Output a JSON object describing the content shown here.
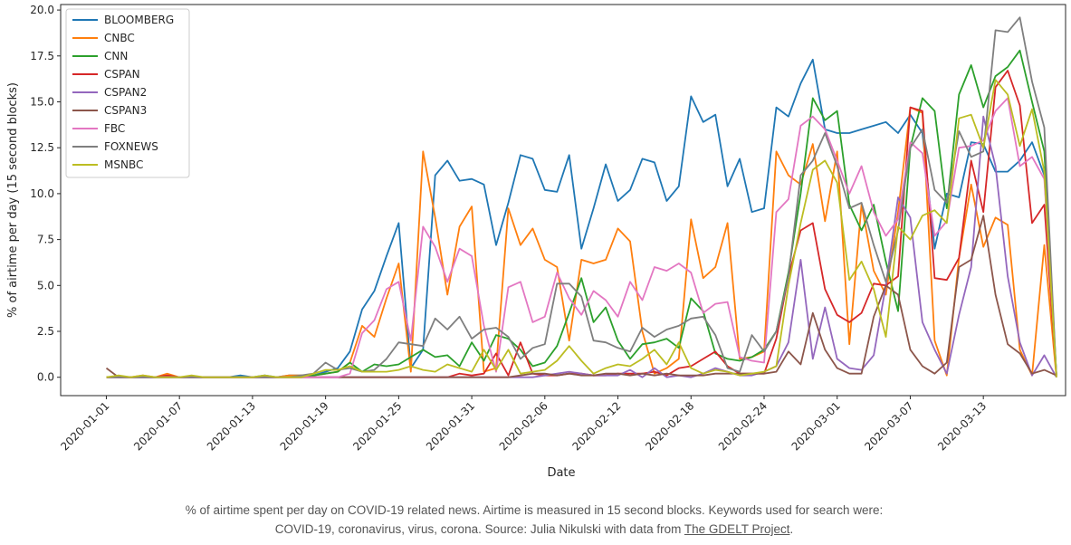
{
  "chart_data": {
    "type": "line",
    "xlabel": "Date",
    "ylabel": "% of airtime per day (15 second blocks)",
    "ylim": [
      -1.0,
      20.3
    ],
    "y_ticks": [
      "0.0",
      "2.5",
      "5.0",
      "7.5",
      "10.0",
      "12.5",
      "15.0",
      "17.5",
      "20.0"
    ],
    "x_tick_labels": [
      "2020-01-01",
      "2020-01-07",
      "2020-01-13",
      "2020-01-19",
      "2020-01-25",
      "2020-01-31",
      "2020-02-06",
      "2020-02-12",
      "2020-02-18",
      "2020-02-24",
      "2020-03-01",
      "2020-03-07",
      "2020-03-13"
    ],
    "start_date": "2020-01-01",
    "end_date": "2020-03-16",
    "grid": false,
    "legend_position": "top-left",
    "series": [
      {
        "name": "BLOOMBERG",
        "color": "#1f77b4",
        "values": [
          0,
          0,
          0,
          0,
          0,
          0,
          0,
          0,
          0,
          0,
          0,
          0.1,
          0,
          0.1,
          0,
          0.1,
          0.1,
          0.1,
          0.3,
          0.5,
          1.4,
          3.7,
          4.7,
          6.6,
          8.4,
          0.5,
          1.5,
          11.0,
          11.8,
          10.7,
          10.8,
          10.5,
          7.2,
          9.5,
          12.1,
          11.9,
          10.2,
          10.1,
          12.1,
          7.0,
          9.2,
          11.6,
          9.6,
          10.2,
          11.9,
          11.7,
          9.6,
          10.4,
          15.3,
          13.9,
          14.3,
          10.4,
          11.9,
          9.0,
          9.2,
          14.7,
          14.2,
          16.0,
          17.3,
          13.5,
          13.3,
          13.3,
          13.5,
          13.7,
          13.9,
          13.3,
          14.3,
          13.3,
          7.0,
          10.0,
          9.8,
          12.8,
          12.7,
          11.2,
          11.2,
          11.8,
          12.8,
          11.0,
          0.1
        ]
      },
      {
        "name": "CNBC",
        "color": "#ff7f0e",
        "values": [
          0,
          0,
          0,
          0.1,
          0,
          0.2,
          0,
          0,
          0,
          0,
          0,
          0,
          0,
          0,
          0,
          0.1,
          0.1,
          0.1,
          0.2,
          0.3,
          0.8,
          2.8,
          2.2,
          4.3,
          6.2,
          0.3,
          12.3,
          8.7,
          4.5,
          8.2,
          9.3,
          0.3,
          0.5,
          9.2,
          7.2,
          8.1,
          6.4,
          6.0,
          2.0,
          6.4,
          6.2,
          6.4,
          8.1,
          7.4,
          2.5,
          0.2,
          0.5,
          1.0,
          8.6,
          5.4,
          6.0,
          8.4,
          1.0,
          1.1,
          1.4,
          12.3,
          11.0,
          10.5,
          12.7,
          8.5,
          12.3,
          1.8,
          9.4,
          5.8,
          4.5,
          9.0,
          14.7,
          14.4,
          2.0,
          0.1,
          6.5,
          10.5,
          7.1,
          8.7,
          8.3,
          1.5,
          0.1,
          7.2,
          0
        ]
      },
      {
        "name": "CNN",
        "color": "#2ca02c",
        "values": [
          0,
          0,
          0,
          0,
          0,
          0,
          0,
          0,
          0,
          0,
          0,
          0,
          0,
          0,
          0,
          0,
          0,
          0.1,
          0.2,
          0.3,
          0.8,
          0.3,
          0.7,
          0.6,
          0.7,
          1.1,
          1.5,
          1.1,
          1.2,
          0.6,
          1.9,
          0.9,
          2.3,
          2.1,
          1.5,
          0.6,
          0.8,
          1.7,
          3.5,
          5.4,
          3.0,
          3.8,
          2.0,
          1.0,
          1.8,
          1.9,
          2.1,
          1.6,
          4.3,
          3.6,
          1.3,
          1.0,
          0.9,
          1.1,
          1.5,
          2.5,
          5.7,
          10.0,
          15.2,
          14.0,
          14.5,
          9.4,
          8.0,
          9.4,
          6.3,
          3.6,
          12.5,
          15.2,
          14.5,
          9.2,
          15.4,
          17.0,
          14.7,
          16.4,
          16.9,
          17.8,
          15.0,
          12.3,
          0.1
        ]
      },
      {
        "name": "CSPAN",
        "color": "#d62728",
        "values": [
          0,
          0,
          0,
          0,
          0,
          0.1,
          0,
          0,
          0,
          0,
          0,
          0,
          0,
          0,
          0,
          0,
          0,
          0,
          0,
          0,
          0,
          0,
          0,
          0,
          0,
          0,
          0,
          0,
          0,
          0.2,
          0.1,
          0.2,
          1.3,
          0.1,
          1.9,
          0.2,
          0.1,
          0.1,
          0.2,
          0.2,
          0.1,
          0.1,
          0.2,
          0.2,
          0.2,
          0.3,
          0.1,
          0.5,
          0.6,
          1.0,
          1.4,
          0.6,
          0.2,
          0.2,
          0.2,
          2.1,
          5.5,
          8.0,
          8.4,
          4.8,
          3.4,
          3.0,
          3.5,
          5.1,
          5.0,
          5.5,
          14.7,
          14.5,
          5.4,
          5.3,
          6.5,
          11.8,
          9.0,
          15.8,
          16.7,
          14.8,
          8.4,
          9.4,
          0.1
        ]
      },
      {
        "name": "CSPAN2",
        "color": "#9467bd",
        "values": [
          0,
          0,
          0,
          0,
          0,
          0,
          0,
          0,
          0,
          0,
          0,
          0,
          0,
          0,
          0,
          0,
          0,
          0,
          0,
          0,
          0,
          0,
          0,
          0,
          0,
          0,
          0,
          0,
          0,
          0,
          0,
          0,
          0,
          0,
          0,
          0,
          0.1,
          0.2,
          0.3,
          0.2,
          0.1,
          0.1,
          0.1,
          0.4,
          0,
          0.5,
          0,
          0.1,
          0,
          0.2,
          0.5,
          0.3,
          0.1,
          0.1,
          0.3,
          0.6,
          1.9,
          6.4,
          1.0,
          3.8,
          1.0,
          0.5,
          0.4,
          1.2,
          5.0,
          9.8,
          8.7,
          3.0,
          1.5,
          0.2,
          3.4,
          6.0,
          14.2,
          11.5,
          5.5,
          1.9,
          0.1,
          1.2,
          0
        ]
      },
      {
        "name": "CSPAN3",
        "color": "#8c564b",
        "values": [
          0.5,
          0,
          0,
          0,
          0,
          0,
          0,
          0,
          0,
          0,
          0,
          0,
          0,
          0,
          0,
          0,
          0,
          0,
          0,
          0,
          0,
          0,
          0,
          0,
          0,
          0,
          0,
          0,
          0,
          0,
          0,
          0,
          0,
          0,
          0.1,
          0.2,
          0.2,
          0.1,
          0.2,
          0.1,
          0.1,
          0.2,
          0.2,
          0.1,
          0.2,
          0.1,
          0.2,
          0.1,
          0.1,
          0.1,
          0.2,
          0.2,
          0.2,
          0.2,
          0.2,
          0.3,
          1.4,
          0.7,
          3.5,
          1.5,
          0.5,
          0.2,
          0.2,
          3.3,
          5.0,
          4.5,
          1.5,
          0.6,
          0.2,
          0.8,
          6.0,
          6.4,
          8.8,
          4.5,
          1.8,
          1.3,
          0.2,
          0.4,
          0.1
        ]
      },
      {
        "name": "FBC",
        "color": "#e377c2",
        "values": [
          0,
          0,
          0,
          0,
          0,
          0,
          0,
          0,
          0,
          0,
          0,
          0,
          0,
          0,
          0,
          0,
          0,
          0,
          0,
          0,
          0.2,
          2.4,
          3.1,
          4.8,
          5.2,
          2.0,
          8.2,
          7.1,
          5.2,
          7.0,
          6.6,
          2.8,
          0.3,
          4.9,
          5.2,
          3.0,
          3.3,
          5.7,
          4.3,
          3.4,
          4.7,
          4.2,
          3.3,
          5.2,
          4.2,
          6.0,
          5.8,
          6.2,
          5.7,
          3.5,
          4.0,
          4.1,
          1.1,
          0.9,
          0.8,
          9.0,
          9.7,
          13.7,
          14.2,
          13.5,
          11.8,
          10.0,
          11.5,
          9.0,
          7.7,
          8.6,
          12.8,
          12.2,
          7.7,
          8.5,
          12.5,
          12.6,
          12.9,
          14.5,
          15.2,
          11.5,
          12.0,
          10.8,
          0.1
        ]
      },
      {
        "name": "FOXNEWS",
        "color": "#7f7f7f",
        "values": [
          0,
          0,
          0,
          0,
          0,
          0,
          0,
          0,
          0,
          0,
          0,
          0,
          0,
          0,
          0,
          0,
          0.1,
          0.2,
          0.8,
          0.4,
          0.5,
          0.3,
          0.4,
          1.0,
          1.9,
          1.8,
          1.7,
          3.2,
          2.6,
          3.3,
          2.1,
          2.6,
          2.7,
          2.2,
          1.0,
          1.6,
          1.8,
          5.1,
          5.1,
          4.4,
          2.0,
          1.9,
          1.6,
          1.4,
          2.7,
          2.2,
          2.6,
          2.8,
          3.2,
          3.3,
          2.3,
          0.5,
          0.3,
          2.3,
          1.4,
          2.5,
          5.5,
          11.0,
          11.8,
          13.3,
          11.5,
          9.2,
          9.5,
          7.2,
          5.2,
          8.0,
          12.5,
          13.5,
          10.2,
          9.5,
          13.4,
          12.0,
          12.3,
          18.9,
          18.8,
          19.6,
          16.1,
          13.6,
          0
        ]
      },
      {
        "name": "MSNBC",
        "color": "#bcbd22",
        "values": [
          0,
          0.1,
          0,
          0.1,
          0,
          0,
          0,
          0.1,
          0,
          0,
          0,
          0,
          0,
          0.1,
          0,
          0,
          0,
          0.2,
          0.4,
          0.4,
          0.6,
          0.3,
          0.3,
          0.3,
          0.4,
          0.6,
          0.4,
          0.3,
          0.7,
          0.5,
          0.3,
          1.5,
          0.4,
          1.5,
          0.2,
          0.3,
          0.4,
          0.9,
          1.7,
          0.9,
          0.2,
          0.5,
          0.7,
          0.6,
          1.0,
          1.5,
          0.7,
          1.9,
          0.5,
          0.2,
          0.4,
          0.3,
          0.1,
          0.2,
          0.3,
          0.6,
          5.0,
          8.4,
          11.3,
          11.8,
          10.6,
          5.3,
          6.3,
          4.8,
          2.2,
          8.2,
          7.5,
          8.8,
          9.1,
          8.4,
          14.1,
          14.3,
          12.5,
          16.2,
          15.4,
          12.6,
          14.6,
          11.2,
          0
        ]
      }
    ]
  },
  "caption": {
    "text": "% of airtime spent per day on COVID-19 related news. Airtime is measured in 15 second blocks. Keywords used for search were: COVID-19, coronavirus, virus, corona. Source: Julia Nikulski with data from ",
    "link_text": "The GDELT Project",
    "suffix": "."
  }
}
